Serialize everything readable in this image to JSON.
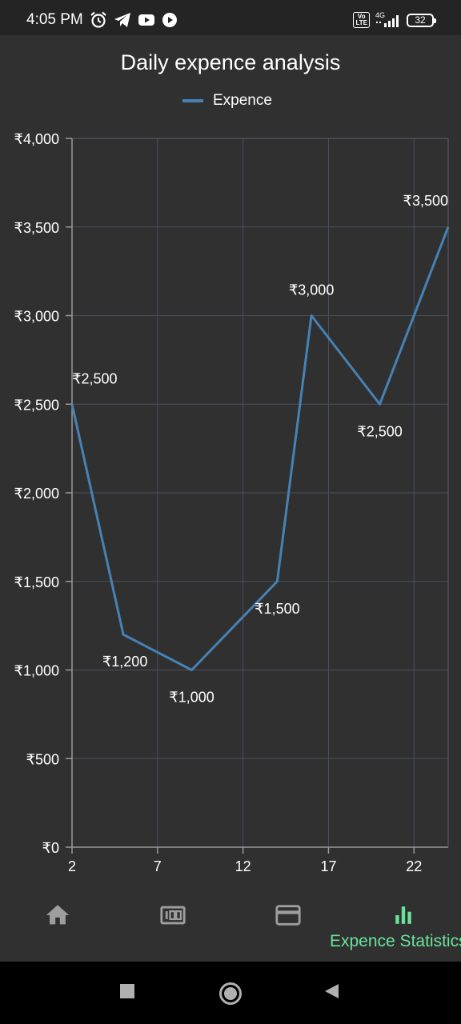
{
  "status_bar": {
    "time": "4:05 PM",
    "left_icons": [
      "alarm-icon",
      "telegram-icon",
      "youtube-icon",
      "play-icon"
    ],
    "volte": "Vo LTE",
    "network": "4G",
    "battery": "32"
  },
  "chart_data": {
    "type": "line",
    "title": "Daily expence analysis",
    "xlabel": "",
    "ylabel": "",
    "x_ticks": [
      "2",
      "7",
      "12",
      "17",
      "22"
    ],
    "y_ticks": [
      "₹0",
      "₹500",
      "₹1,000",
      "₹1,500",
      "₹2,000",
      "₹2,500",
      "₹3,000",
      "₹3,500",
      "₹4,000"
    ],
    "xlim": [
      2,
      24
    ],
    "ylim": [
      0,
      4000
    ],
    "grid": true,
    "legend_position": "top",
    "series": [
      {
        "name": "Expence",
        "color": "#4682b4",
        "points": [
          {
            "x": 2,
            "y": 2500,
            "label": "₹2,500"
          },
          {
            "x": 5,
            "y": 1200,
            "label": "₹1,200"
          },
          {
            "x": 9,
            "y": 1000,
            "label": "₹1,000"
          },
          {
            "x": 14,
            "y": 1500,
            "label": "₹1,500"
          },
          {
            "x": 16,
            "y": 3000,
            "label": "₹3,000"
          },
          {
            "x": 20,
            "y": 2500,
            "label": "₹2,500"
          },
          {
            "x": 24,
            "y": 3500,
            "label": "₹3,500"
          }
        ]
      }
    ]
  },
  "bottom_nav": {
    "items": [
      {
        "icon": "home-icon"
      },
      {
        "icon": "money-icon"
      },
      {
        "icon": "card-icon"
      },
      {
        "icon": "bar-chart-icon",
        "label": "Expence Statistics",
        "active": true
      }
    ],
    "active_color": "#6be39a"
  },
  "system_nav": [
    "recents-icon",
    "home-circle-icon",
    "back-icon"
  ]
}
